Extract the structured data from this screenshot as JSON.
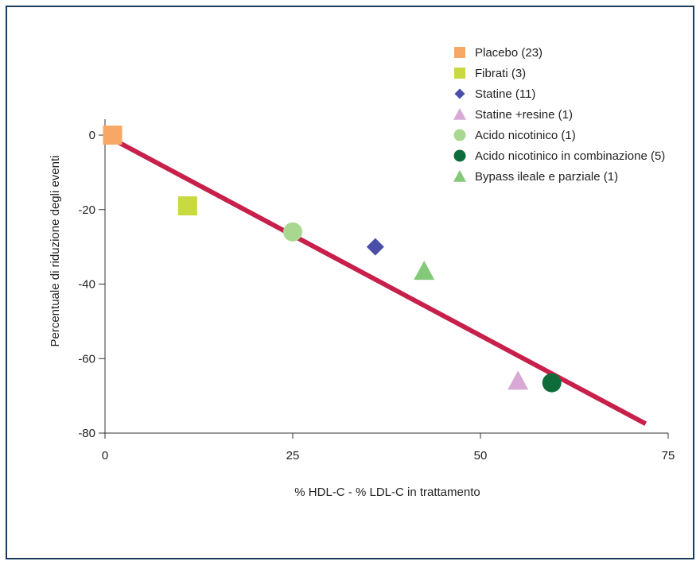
{
  "chart_data": {
    "type": "scatter",
    "xlabel": "% HDL-C - % LDL-C in trattamento",
    "ylabel": "Percentuale di riduzione degli eventi",
    "xlim": [
      0,
      75
    ],
    "ylim": [
      -80,
      0
    ],
    "xticks": [
      0,
      25,
      50,
      75
    ],
    "yticks": [
      0,
      -20,
      -40,
      -60,
      -80
    ],
    "legend_position": "top-right",
    "series": [
      {
        "name": "Placebo (23)",
        "marker": "square",
        "color": "#f7a864",
        "points": [
          [
            1,
            0
          ]
        ]
      },
      {
        "name": "Fibrati (3)",
        "marker": "square",
        "color": "#c9d942",
        "points": [
          [
            11,
            -19
          ]
        ]
      },
      {
        "name": "Statine (11)",
        "marker": "diamond",
        "color": "#4a4ea8",
        "points": [
          [
            36,
            -30
          ]
        ]
      },
      {
        "name": "Statine +resine (1)",
        "marker": "triangle",
        "color": "#d8a9d4",
        "points": [
          [
            55,
            -66
          ]
        ]
      },
      {
        "name": "Acido nicotinico (1)",
        "marker": "circle",
        "color": "#a8d890",
        "points": [
          [
            25,
            -26
          ]
        ]
      },
      {
        "name": "Acido nicotinico in combinazione (5)",
        "marker": "circle",
        "color": "#0e6b3a",
        "points": [
          [
            59.5,
            -66.5
          ]
        ]
      },
      {
        "name": "Bypass ileale e parziale (1)",
        "marker": "triangle",
        "color": "#84c87a",
        "points": [
          [
            42.5,
            -36.5
          ]
        ]
      }
    ],
    "trendline": {
      "color": "#c7204a",
      "from": [
        0,
        0
      ],
      "to": [
        72,
        -77.5
      ]
    }
  }
}
